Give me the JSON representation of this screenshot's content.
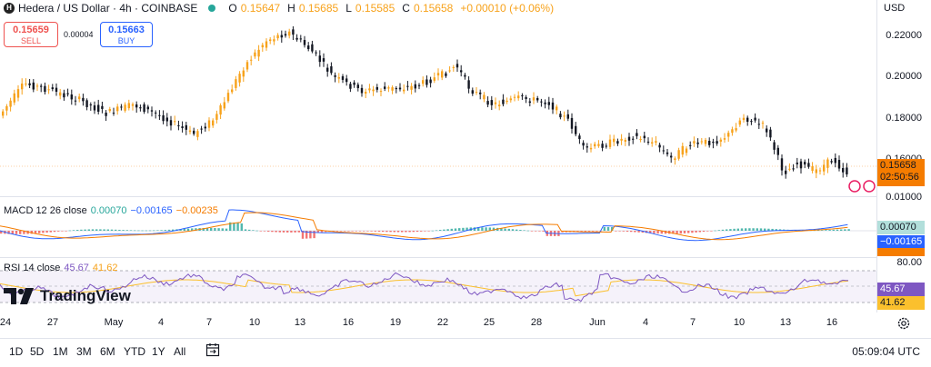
{
  "header": {
    "symbol": "Hedera / US Dollar · 4h · COINBASE",
    "logo_letter": "H",
    "ohlc": [
      {
        "k": "O",
        "v": "0.15647"
      },
      {
        "k": "H",
        "v": "0.15685"
      },
      {
        "k": "L",
        "v": "0.15585"
      },
      {
        "k": "C",
        "v": "0.15658"
      }
    ],
    "change": "+0.00010 (+0.06%)",
    "currency": "USD"
  },
  "trade": {
    "sell_price": "0.15659",
    "sell_label": "SELL",
    "spread": "0.00004",
    "buy_price": "0.15663",
    "buy_label": "BUY"
  },
  "price_axis": {
    "ticks": [
      "0.22000",
      "0.20000",
      "0.18000",
      "0.16000",
      "0.01000"
    ],
    "last_price": "0.15658",
    "countdown": "02:50:56"
  },
  "macd": {
    "label": "MACD 12 26 close",
    "hist": "0.00070",
    "macd": "−0.00165",
    "signal": "−0.00235",
    "tag_hist": "0.00070",
    "tag_macd": "−0.00165"
  },
  "rsi": {
    "label": "RSI 14 close",
    "rsi": "45.67",
    "ma": "41.62",
    "tick_top": "80.00",
    "tag_rsi": "45.67",
    "tag_ma": "41.62"
  },
  "xaxis": {
    "labels": [
      "24",
      "27",
      "May",
      "4",
      "7",
      "10",
      "13",
      "16",
      "19",
      "22",
      "25",
      "28",
      "Jun",
      "4",
      "7",
      "10",
      "13",
      "16"
    ]
  },
  "toolbar": {
    "timeframes": [
      "1D",
      "5D",
      "1M",
      "3M",
      "6M",
      "YTD",
      "1Y",
      "All"
    ],
    "clock": "05:09:04 UTC"
  },
  "branding": {
    "name": "TradingView"
  },
  "colors": {
    "up": "#f7a21b",
    "down": "#131722",
    "macd": "#2962ff",
    "signal": "#f57c00",
    "hist_up": "#26a69a",
    "hist_down": "#ef5350",
    "rsi": "#7e57c2",
    "rsi_ma": "#fbc02d"
  }
}
